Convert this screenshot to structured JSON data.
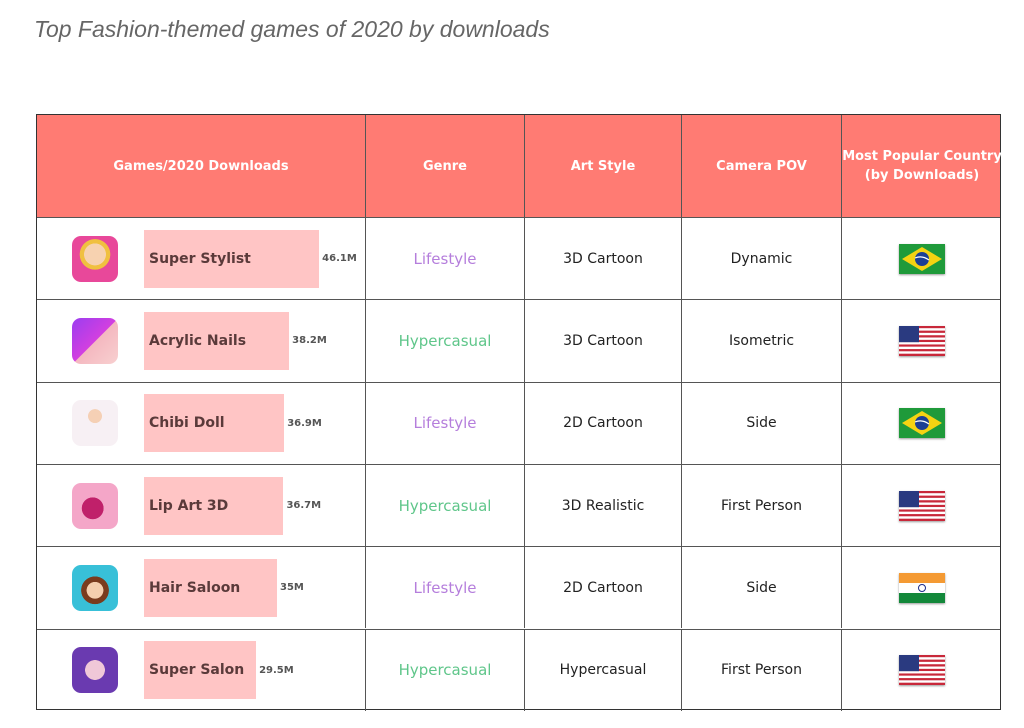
{
  "title": "Top Fashion-themed games of 2020 by downloads",
  "colors": {
    "header": "#FF7B73",
    "bar": "#FFC5C5",
    "Lifestyle": "#B57EDC",
    "Hypercasual": "#5FC68A"
  },
  "headers": [
    "Games/2020 Downloads",
    "Genre",
    "Art Style",
    "Camera POV",
    "Most Popular Country\n(by Downloads)"
  ],
  "chart_data": {
    "type": "table",
    "title": "Top Fashion-themed games of 2020 by downloads",
    "columns": [
      "Games/2020 Downloads",
      "Genre",
      "Art Style",
      "Camera POV",
      "Most Popular Country (by Downloads)"
    ],
    "rows": [
      {
        "game": "Super Stylist",
        "downloads": 46.1,
        "label": "46.1M",
        "genre": "Lifestyle",
        "art": "3D Cartoon",
        "pov": "Dynamic",
        "country": "Brazil",
        "icon": "super-stylist-app-icon"
      },
      {
        "game": "Acrylic Nails",
        "downloads": 38.2,
        "label": "38.2M",
        "genre": "Hypercasual",
        "art": "3D Cartoon",
        "pov": "Isometric",
        "country": "United States",
        "icon": "acrylic-nails-app-icon"
      },
      {
        "game": "Chibi Doll",
        "downloads": 36.9,
        "label": "36.9M",
        "genre": "Lifestyle",
        "art": "2D Cartoon",
        "pov": "Side",
        "country": "Brazil",
        "icon": "chibi-doll-app-icon"
      },
      {
        "game": "Lip Art 3D",
        "downloads": 36.7,
        "label": "36.7M",
        "genre": "Hypercasual",
        "art": "3D Realistic",
        "pov": "First Person",
        "country": "United States",
        "icon": "lip-art-app-icon"
      },
      {
        "game": "Hair Saloon",
        "downloads": 35,
        "label": "35M",
        "genre": "Lifestyle",
        "art": "2D Cartoon",
        "pov": "Side",
        "country": "India",
        "icon": "hair-saloon-app-icon"
      },
      {
        "game": "Super Salon",
        "downloads": 29.5,
        "label": "29.5M",
        "genre": "Hypercasual",
        "art": "Hypercasual",
        "pov": "First Person",
        "country": "United States",
        "icon": "super-salon-app-icon"
      }
    ]
  }
}
